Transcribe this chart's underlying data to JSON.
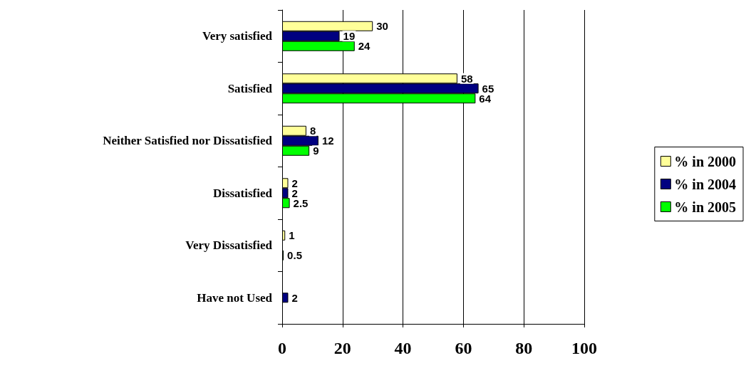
{
  "chart_data": {
    "type": "bar",
    "orientation": "horizontal",
    "categories": [
      "Very satisfied",
      "Satisfied",
      "Neither Satisfied nor Dissatisfied",
      "Dissatisfied",
      "Very Dissatisfied",
      "Have not Used"
    ],
    "series": [
      {
        "name": "% in 2000",
        "color": "#ffff99",
        "values": [
          30,
          58,
          8,
          2,
          1,
          null
        ]
      },
      {
        "name": "% in 2004",
        "color": "#000080",
        "values": [
          19,
          65,
          12,
          2,
          null,
          2
        ]
      },
      {
        "name": "% in 2005",
        "color": "#00ff00",
        "values": [
          24,
          64,
          9,
          2.5,
          0.5,
          null
        ]
      }
    ],
    "xlim": [
      0,
      100
    ],
    "xticks": [
      0,
      20,
      40,
      60,
      80,
      100
    ],
    "grid": "x",
    "legend": "right",
    "data_labels": true
  }
}
